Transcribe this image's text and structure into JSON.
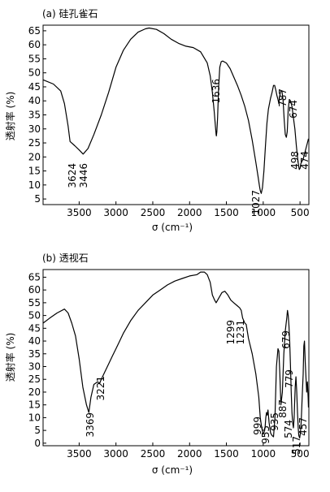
{
  "chart_data": [
    {
      "type": "line",
      "title": "(a) 硅孔雀石",
      "xlabel": "σ (cm⁻¹)",
      "ylabel": "透射率 (%)",
      "xlim": [
        3990,
        380
      ],
      "ylim": [
        3,
        67
      ],
      "xticks": [
        3500,
        3000,
        2500,
        2000,
        1500,
        1000,
        500
      ],
      "yticks": [
        5,
        10,
        15,
        20,
        25,
        30,
        35,
        40,
        45,
        50,
        55,
        60,
        65
      ],
      "grid": false,
      "series": [
        {
          "x": [
            3990,
            3850,
            3750,
            3700,
            3650,
            3624,
            3560,
            3500,
            3446,
            3380,
            3300,
            3200,
            3100,
            3000,
            2900,
            2800,
            2700,
            2600,
            2550,
            2450,
            2350,
            2250,
            2150,
            2050,
            1950,
            1850,
            1760,
            1720,
            1690,
            1665,
            1650,
            1640,
            1636,
            1630,
            1620,
            1605,
            1590,
            1570,
            1550,
            1500,
            1450,
            1400,
            1350,
            1300,
            1250,
            1200,
            1150,
            1100,
            1070,
            1050,
            1040,
            1027,
            1010,
            990,
            970,
            950,
            930,
            900,
            880,
            860,
            845,
            830,
            815,
            800,
            787,
            775,
            760,
            745,
            730,
            715,
            700,
            686,
            674,
            660,
            645,
            630,
            610,
            590,
            570,
            550,
            535,
            520,
            510,
            498,
            490,
            482,
            474,
            460,
            440,
            420,
            400,
            385
          ],
          "y": [
            47.5,
            46,
            43.5,
            39,
            31,
            25.5,
            24,
            22.5,
            21,
            23,
            28,
            35,
            43,
            52,
            58,
            62,
            64.5,
            65.7,
            66,
            65.5,
            64,
            62,
            60.5,
            59.5,
            59,
            57.5,
            53.5,
            49,
            43,
            36,
            31,
            28,
            27.5,
            29,
            34,
            45,
            52,
            54,
            54.2,
            53.5,
            51.5,
            48.5,
            45.5,
            42,
            38,
            33,
            26,
            18,
            13,
            9.5,
            8,
            7,
            9,
            15,
            24,
            32,
            37,
            41,
            43,
            45.5,
            45.5,
            44,
            42,
            40.5,
            39,
            42,
            43.5,
            43.5,
            40,
            33,
            28,
            27,
            29,
            37,
            40.5,
            40,
            38,
            34,
            30,
            24,
            20,
            17,
            15.5,
            16,
            17.5,
            18,
            18.5,
            19,
            21,
            23,
            25,
            26.5
          ]
        }
      ],
      "annotations": [
        "3624",
        "3446",
        "1636",
        "1027",
        "787",
        "674",
        "498",
        "474"
      ]
    },
    {
      "type": "line",
      "title": "(b) 透视石",
      "xlabel": "σ (cm⁻¹)",
      "ylabel": "透射率 (%)",
      "xlim": [
        3990,
        380
      ],
      "ylim": [
        -1,
        68
      ],
      "xticks": [
        3500,
        3000,
        2500,
        2000,
        1500,
        1000,
        500
      ],
      "yticks": [
        0,
        5,
        10,
        15,
        20,
        25,
        30,
        35,
        40,
        45,
        50,
        55,
        60,
        65
      ],
      "grid": false,
      "series": [
        {
          "x": [
            3990,
            3900,
            3800,
            3700,
            3650,
            3600,
            3550,
            3500,
            3450,
            3400,
            3369,
            3340,
            3300,
            3250,
            3221,
            3200,
            3150,
            3100,
            3050,
            3000,
            2950,
            2900,
            2800,
            2700,
            2600,
            2500,
            2400,
            2300,
            2200,
            2100,
            2000,
            1900,
            1850,
            1800,
            1760,
            1720,
            1690,
            1660,
            1640,
            1600,
            1560,
            1520,
            1480,
            1440,
            1400,
            1360,
            1320,
            1299,
            1280,
            1250,
            1231,
            1200,
            1150,
            1100,
            1060,
            1040,
            1020,
            1005,
            999,
            990,
            975,
            965,
            955,
            945,
            935,
            920,
            900,
            880,
            860,
            840,
            820,
            800,
            787,
            775,
            760,
            740,
            720,
            700,
            680,
            670,
            660,
            650,
            640,
            630,
            620,
            610,
            600,
            590,
            580,
            574,
            565,
            555,
            545,
            535,
            525,
            517,
            505,
            495,
            485,
            475,
            465,
            457,
            448,
            440,
            430,
            420,
            410,
            400,
            390,
            385
          ],
          "y": [
            47,
            49,
            51,
            52.5,
            51,
            47,
            42,
            33,
            22,
            15,
            12,
            18,
            23,
            24,
            23.5,
            25,
            28,
            31,
            34,
            37,
            40,
            43,
            48,
            52,
            55,
            58,
            60,
            62,
            63.5,
            64.5,
            65.5,
            66,
            67,
            67,
            66,
            63,
            58,
            56,
            55,
            57,
            59,
            59.5,
            58,
            56,
            55,
            54,
            53,
            52,
            49,
            47,
            46.5,
            41,
            35,
            27,
            18,
            10,
            6,
            4,
            3.5,
            4,
            6,
            10,
            12,
            11,
            13,
            8,
            4,
            3,
            2.5,
            10,
            30,
            37,
            36,
            28,
            15,
            20,
            35,
            44,
            49,
            52,
            50,
            46,
            40,
            30,
            20,
            12,
            8,
            6,
            10,
            15,
            22,
            26,
            20,
            12,
            6,
            3,
            2,
            4,
            8,
            15,
            22,
            27,
            38,
            40,
            32,
            26,
            20,
            24,
            18,
            14
          ]
        }
      ],
      "annotations": [
        "3369",
        "3221",
        "1299",
        "1231",
        "999",
        "955",
        "935",
        "887",
        "779",
        "679",
        "574",
        "517",
        "457"
      ]
    }
  ]
}
